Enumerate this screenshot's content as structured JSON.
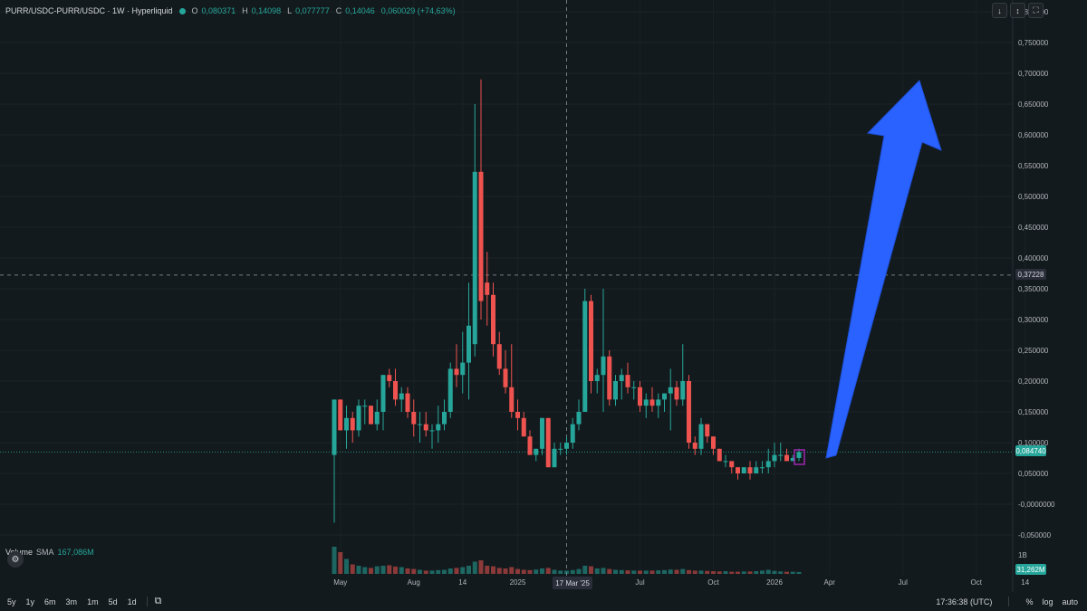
{
  "header": {
    "symbol": "PURR/USDC-PURR/USDC · 1W · Hyperliquid",
    "open_label": "O",
    "open_value": "0,080371",
    "high_label": "H",
    "high_value": "0,14098",
    "low_label": "L",
    "low_value": "0,077777",
    "close_label": "C",
    "close_value": "0,14046",
    "change_value": "0,060029 (+74,63%)"
  },
  "top_buttons": [
    "↓",
    "↕",
    "⛶"
  ],
  "volume_legend": {
    "title": "Volume",
    "sma_label": "SMA",
    "sma_value": "167,086M"
  },
  "price_tags": {
    "crosshair": "0,37228",
    "last": "0,084740",
    "volume_last": "31,262M",
    "volume_axis_tick": "1B"
  },
  "x_crosshair_label": "17 Mar '25",
  "bottom_bar": {
    "timeframes": [
      "5y",
      "1y",
      "6m",
      "3m",
      "1m",
      "5d",
      "1d"
    ],
    "clock": "17:36:38 (UTC)",
    "percent": "%",
    "log": "log",
    "auto": "auto"
  },
  "colors": {
    "background": "#131a1d",
    "up": "#26a69a",
    "down": "#ef5350",
    "arrow": "#2962ff",
    "highlight_box": "#9c27b0"
  },
  "chart_data": {
    "type": "candlestick",
    "title": "PURR/USDC-PURR/USDC · 1W · Hyperliquid",
    "y_axis": {
      "ticks": [
        "0,800000",
        "0,750000",
        "0,700000",
        "0,650000",
        "0,600000",
        "0,550000",
        "0,500000",
        "0,450000",
        "0,400000",
        "0,350000",
        "0,300000",
        "0,250000",
        "0,200000",
        "0,150000",
        "0,100000",
        "0,050000",
        "-0,0000000",
        "-0,050000"
      ],
      "tick_values": [
        0.8,
        0.75,
        0.7,
        0.65,
        0.6,
        0.55,
        0.5,
        0.45,
        0.4,
        0.35,
        0.3,
        0.25,
        0.2,
        0.15,
        0.1,
        0.05,
        0.0,
        -0.05
      ],
      "range": [
        -0.05,
        0.8
      ]
    },
    "x_axis": {
      "ticks": [
        "May",
        "Aug",
        "14",
        "2025",
        "Jul",
        "Oct",
        "2026",
        "Apr",
        "Jul",
        "Oct",
        "14"
      ],
      "tick_week_index": [
        1,
        13,
        21,
        30,
        50,
        62,
        72,
        81,
        93,
        105,
        113
      ]
    },
    "crosshair": {
      "price": 0.37228,
      "week_index": 38
    },
    "last_price": 0.08474,
    "candles": [
      {
        "o": 0.08,
        "h": 0.17,
        "l": -0.03,
        "c": 0.17
      },
      {
        "o": 0.17,
        "h": 0.17,
        "l": 0.12,
        "c": 0.12
      },
      {
        "o": 0.12,
        "h": 0.16,
        "l": 0.09,
        "c": 0.14
      },
      {
        "o": 0.14,
        "h": 0.15,
        "l": 0.1,
        "c": 0.12
      },
      {
        "o": 0.12,
        "h": 0.17,
        "l": 0.11,
        "c": 0.16
      },
      {
        "o": 0.16,
        "h": 0.17,
        "l": 0.13,
        "c": 0.16
      },
      {
        "o": 0.16,
        "h": 0.16,
        "l": 0.13,
        "c": 0.13
      },
      {
        "o": 0.13,
        "h": 0.17,
        "l": 0.12,
        "c": 0.15
      },
      {
        "o": 0.15,
        "h": 0.21,
        "l": 0.12,
        "c": 0.21
      },
      {
        "o": 0.21,
        "h": 0.22,
        "l": 0.19,
        "c": 0.2
      },
      {
        "o": 0.2,
        "h": 0.22,
        "l": 0.16,
        "c": 0.17
      },
      {
        "o": 0.17,
        "h": 0.19,
        "l": 0.15,
        "c": 0.18
      },
      {
        "o": 0.18,
        "h": 0.19,
        "l": 0.14,
        "c": 0.15
      },
      {
        "o": 0.15,
        "h": 0.17,
        "l": 0.11,
        "c": 0.13
      },
      {
        "o": 0.13,
        "h": 0.15,
        "l": 0.1,
        "c": 0.13
      },
      {
        "o": 0.13,
        "h": 0.15,
        "l": 0.11,
        "c": 0.12
      },
      {
        "o": 0.12,
        "h": 0.13,
        "l": 0.09,
        "c": 0.12
      },
      {
        "o": 0.12,
        "h": 0.16,
        "l": 0.1,
        "c": 0.13
      },
      {
        "o": 0.13,
        "h": 0.17,
        "l": 0.12,
        "c": 0.15
      },
      {
        "o": 0.15,
        "h": 0.23,
        "l": 0.14,
        "c": 0.22
      },
      {
        "o": 0.22,
        "h": 0.26,
        "l": 0.19,
        "c": 0.21
      },
      {
        "o": 0.21,
        "h": 0.28,
        "l": 0.18,
        "c": 0.23
      },
      {
        "o": 0.23,
        "h": 0.36,
        "l": 0.17,
        "c": 0.29
      },
      {
        "o": 0.26,
        "h": 0.65,
        "l": 0.24,
        "c": 0.54
      },
      {
        "o": 0.54,
        "h": 0.69,
        "l": 0.3,
        "c": 0.33
      },
      {
        "o": 0.36,
        "h": 0.41,
        "l": 0.29,
        "c": 0.34
      },
      {
        "o": 0.34,
        "h": 0.36,
        "l": 0.24,
        "c": 0.26
      },
      {
        "o": 0.26,
        "h": 0.28,
        "l": 0.21,
        "c": 0.22
      },
      {
        "o": 0.22,
        "h": 0.25,
        "l": 0.18,
        "c": 0.19
      },
      {
        "o": 0.19,
        "h": 0.26,
        "l": 0.14,
        "c": 0.15
      },
      {
        "o": 0.15,
        "h": 0.17,
        "l": 0.12,
        "c": 0.14
      },
      {
        "o": 0.14,
        "h": 0.15,
        "l": 0.11,
        "c": 0.11
      },
      {
        "o": 0.11,
        "h": 0.12,
        "l": 0.08,
        "c": 0.08
      },
      {
        "o": 0.08,
        "h": 0.09,
        "l": 0.07,
        "c": 0.09
      },
      {
        "o": 0.09,
        "h": 0.14,
        "l": 0.08,
        "c": 0.14
      },
      {
        "o": 0.14,
        "h": 0.14,
        "l": 0.06,
        "c": 0.06
      },
      {
        "o": 0.06,
        "h": 0.1,
        "l": 0.06,
        "c": 0.09
      },
      {
        "o": 0.09,
        "h": 0.1,
        "l": 0.08,
        "c": 0.09
      },
      {
        "o": 0.09,
        "h": 0.11,
        "l": 0.08,
        "c": 0.1
      },
      {
        "o": 0.1,
        "h": 0.14,
        "l": 0.09,
        "c": 0.13
      },
      {
        "o": 0.13,
        "h": 0.17,
        "l": 0.12,
        "c": 0.15
      },
      {
        "o": 0.15,
        "h": 0.35,
        "l": 0.15,
        "c": 0.33
      },
      {
        "o": 0.33,
        "h": 0.34,
        "l": 0.18,
        "c": 0.2
      },
      {
        "o": 0.2,
        "h": 0.22,
        "l": 0.18,
        "c": 0.21
      },
      {
        "o": 0.21,
        "h": 0.35,
        "l": 0.15,
        "c": 0.24
      },
      {
        "o": 0.24,
        "h": 0.25,
        "l": 0.16,
        "c": 0.17
      },
      {
        "o": 0.17,
        "h": 0.21,
        "l": 0.16,
        "c": 0.2
      },
      {
        "o": 0.2,
        "h": 0.22,
        "l": 0.17,
        "c": 0.21
      },
      {
        "o": 0.21,
        "h": 0.23,
        "l": 0.18,
        "c": 0.19
      },
      {
        "o": 0.19,
        "h": 0.2,
        "l": 0.17,
        "c": 0.19
      },
      {
        "o": 0.19,
        "h": 0.2,
        "l": 0.15,
        "c": 0.16
      },
      {
        "o": 0.16,
        "h": 0.18,
        "l": 0.14,
        "c": 0.17
      },
      {
        "o": 0.17,
        "h": 0.19,
        "l": 0.15,
        "c": 0.16
      },
      {
        "o": 0.16,
        "h": 0.18,
        "l": 0.14,
        "c": 0.17
      },
      {
        "o": 0.17,
        "h": 0.18,
        "l": 0.15,
        "c": 0.18
      },
      {
        "o": 0.18,
        "h": 0.22,
        "l": 0.12,
        "c": 0.19
      },
      {
        "o": 0.19,
        "h": 0.2,
        "l": 0.16,
        "c": 0.17
      },
      {
        "o": 0.17,
        "h": 0.26,
        "l": 0.16,
        "c": 0.2
      },
      {
        "o": 0.2,
        "h": 0.21,
        "l": 0.09,
        "c": 0.1
      },
      {
        "o": 0.1,
        "h": 0.11,
        "l": 0.08,
        "c": 0.09
      },
      {
        "o": 0.09,
        "h": 0.14,
        "l": 0.08,
        "c": 0.13
      },
      {
        "o": 0.13,
        "h": 0.13,
        "l": 0.1,
        "c": 0.11
      },
      {
        "o": 0.11,
        "h": 0.11,
        "l": 0.08,
        "c": 0.09
      },
      {
        "o": 0.09,
        "h": 0.09,
        "l": 0.07,
        "c": 0.07
      },
      {
        "o": 0.07,
        "h": 0.08,
        "l": 0.06,
        "c": 0.07
      },
      {
        "o": 0.07,
        "h": 0.07,
        "l": 0.05,
        "c": 0.06
      },
      {
        "o": 0.06,
        "h": 0.06,
        "l": 0.04,
        "c": 0.05
      },
      {
        "o": 0.05,
        "h": 0.06,
        "l": 0.05,
        "c": 0.06
      },
      {
        "o": 0.06,
        "h": 0.07,
        "l": 0.04,
        "c": 0.05
      },
      {
        "o": 0.05,
        "h": 0.07,
        "l": 0.05,
        "c": 0.06
      },
      {
        "o": 0.06,
        "h": 0.07,
        "l": 0.05,
        "c": 0.06
      },
      {
        "o": 0.06,
        "h": 0.09,
        "l": 0.05,
        "c": 0.07
      },
      {
        "o": 0.07,
        "h": 0.1,
        "l": 0.06,
        "c": 0.08
      },
      {
        "o": 0.08,
        "h": 0.1,
        "l": 0.07,
        "c": 0.08
      },
      {
        "o": 0.08,
        "h": 0.09,
        "l": 0.07,
        "c": 0.07
      },
      {
        "o": 0.07,
        "h": 0.08,
        "l": 0.07,
        "c": 0.075
      },
      {
        "o": 0.075,
        "h": 0.09,
        "l": 0.07,
        "c": 0.0847
      }
    ],
    "volume": [
      1.0,
      0.8,
      0.55,
      0.35,
      0.3,
      0.25,
      0.22,
      0.28,
      0.3,
      0.32,
      0.27,
      0.25,
      0.2,
      0.18,
      0.15,
      0.12,
      0.12,
      0.14,
      0.15,
      0.2,
      0.22,
      0.25,
      0.3,
      0.45,
      0.5,
      0.3,
      0.28,
      0.22,
      0.2,
      0.25,
      0.18,
      0.15,
      0.14,
      0.16,
      0.2,
      0.22,
      0.15,
      0.12,
      0.12,
      0.14,
      0.18,
      0.3,
      0.28,
      0.2,
      0.22,
      0.18,
      0.15,
      0.14,
      0.13,
      0.12,
      0.12,
      0.12,
      0.12,
      0.13,
      0.14,
      0.16,
      0.15,
      0.18,
      0.14,
      0.12,
      0.12,
      0.11,
      0.1,
      0.09,
      0.1,
      0.08,
      0.08,
      0.09,
      0.09,
      0.1,
      0.12,
      0.15,
      0.11,
      0.09,
      0.08,
      0.08,
      0.07
    ],
    "annotations": [
      "upward arrow projection",
      "highlighted last candle"
    ]
  }
}
